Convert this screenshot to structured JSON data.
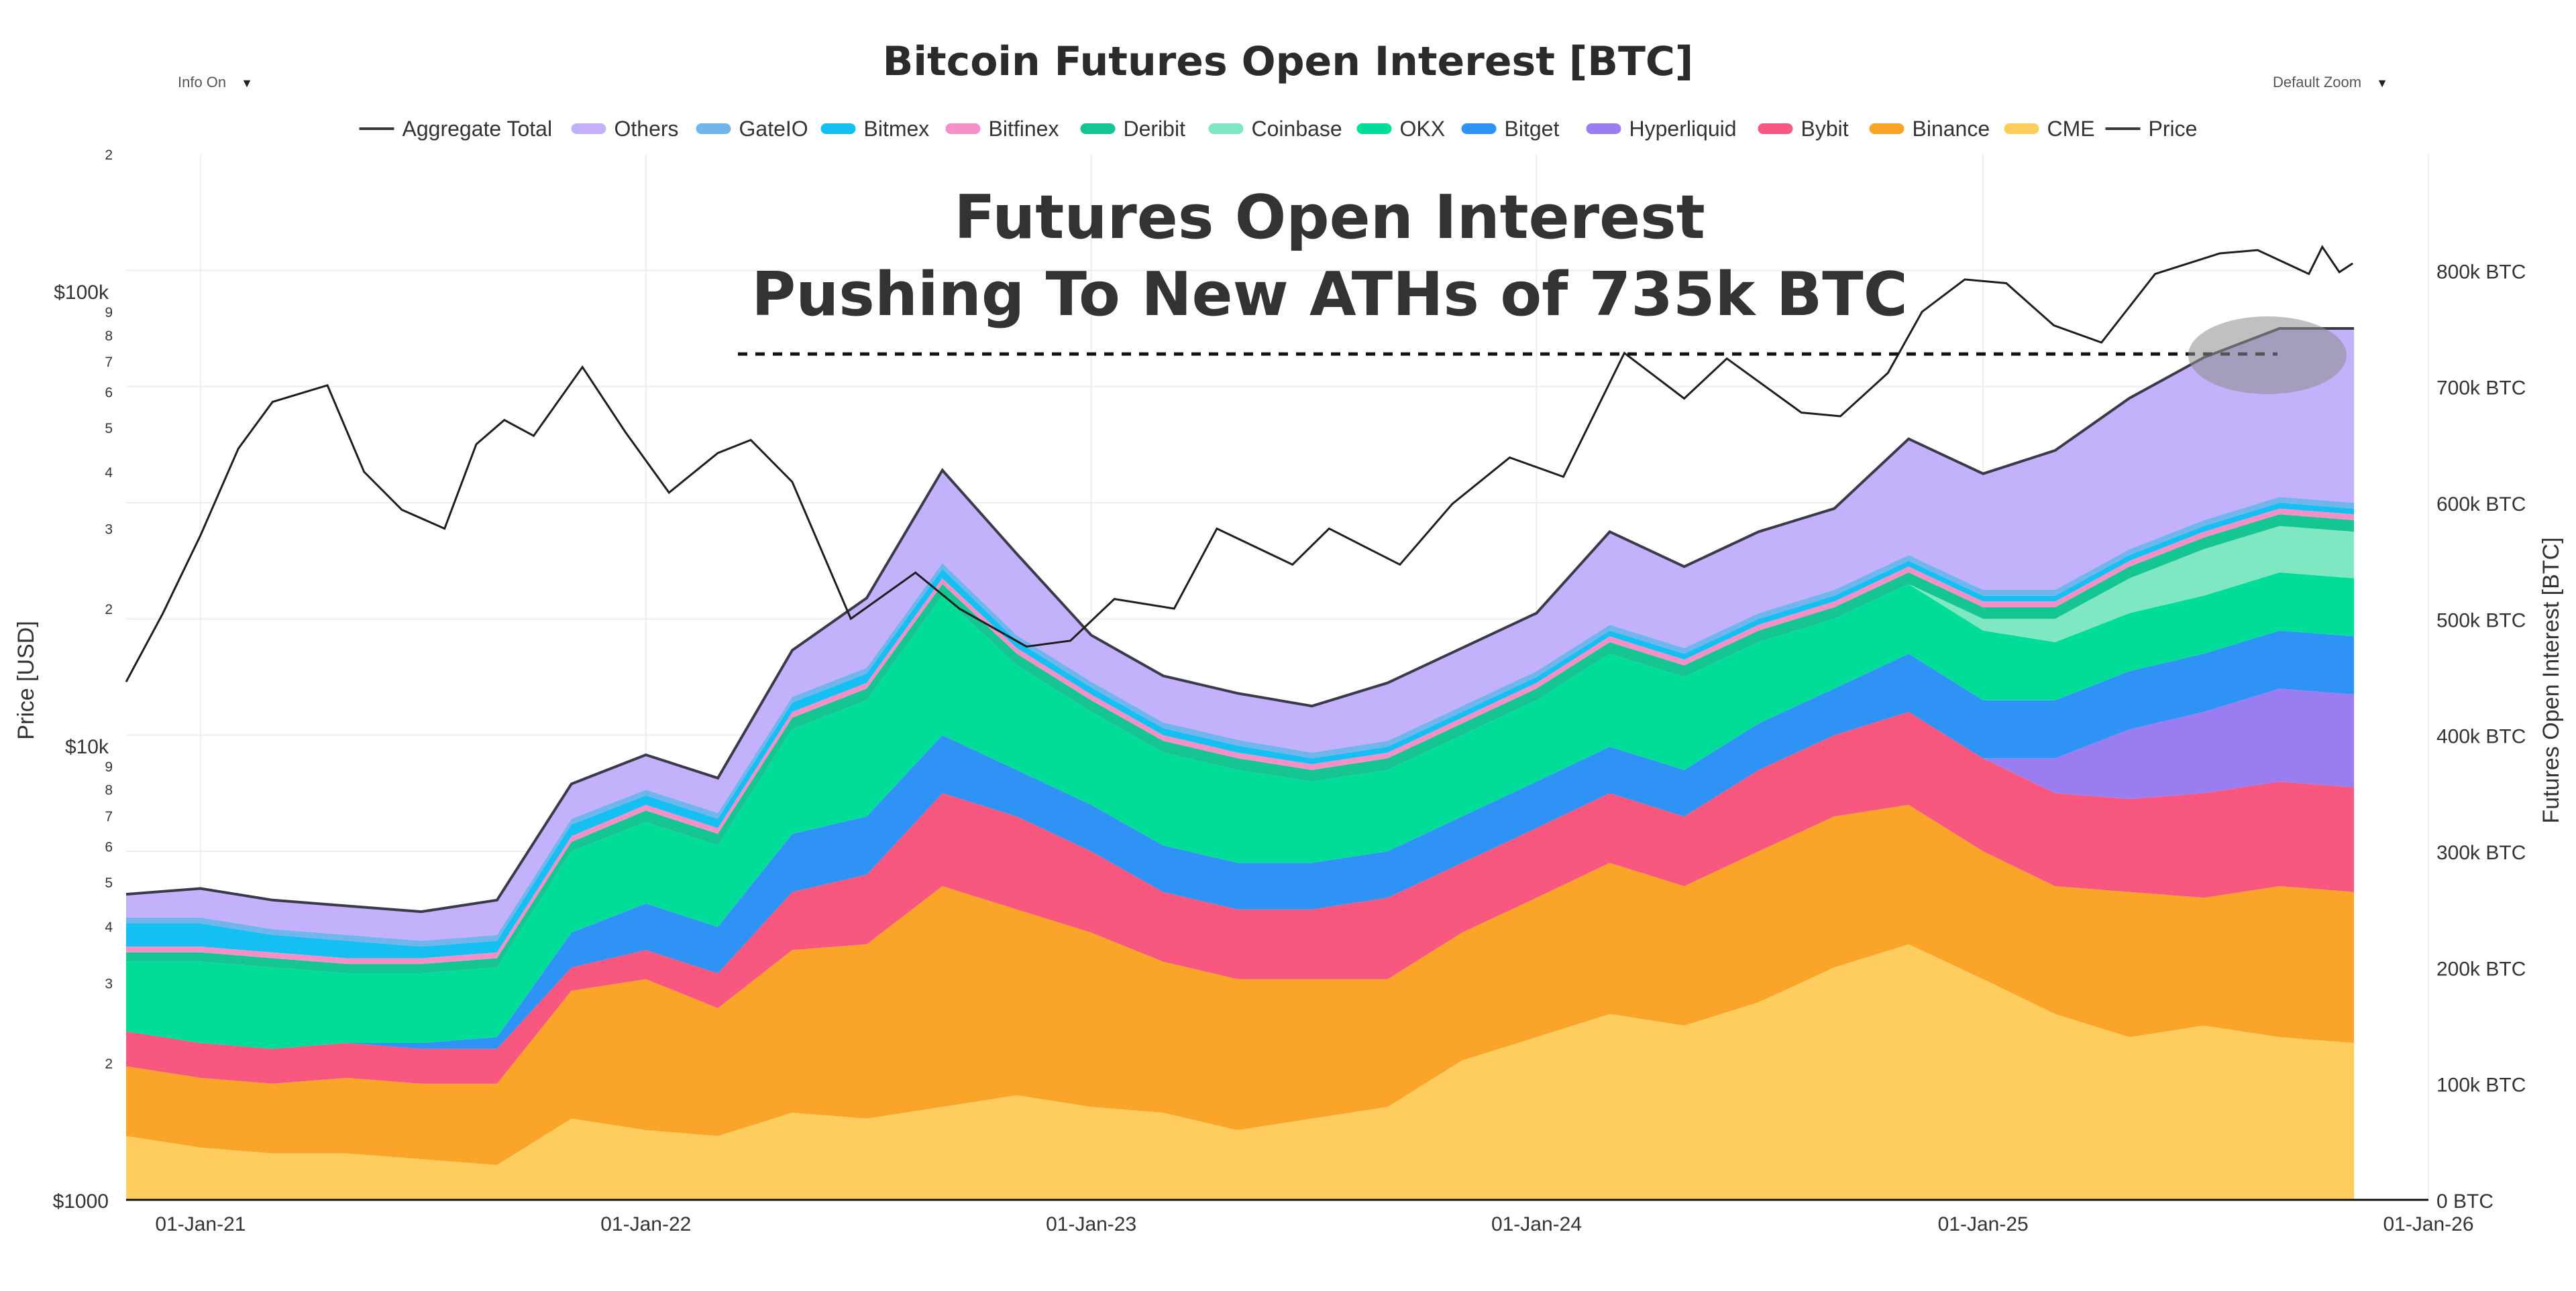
{
  "controls": {
    "info": "Info On",
    "zoom": "Default Zoom"
  },
  "chart_data": {
    "type": "area",
    "title": "Bitcoin Futures Open Interest [BTC]",
    "annotation": {
      "line1": "Futures Open Interest",
      "line2": "Pushing To New ATHs of 735k BTC",
      "level_btc": 728000
    },
    "left_axis": {
      "title": "Price [USD]",
      "scale": "log",
      "range": [
        1000,
        200000
      ],
      "major_ticks": [
        {
          "value": 1000,
          "label": "$1000"
        },
        {
          "value": 10000,
          "label": "$10k"
        },
        {
          "value": 100000,
          "label": "$100k"
        }
      ],
      "minor_ticks": [
        {
          "value": 2000,
          "label": "2"
        },
        {
          "value": 3000,
          "label": "3"
        },
        {
          "value": 4000,
          "label": "4"
        },
        {
          "value": 5000,
          "label": "5"
        },
        {
          "value": 6000,
          "label": "6"
        },
        {
          "value": 7000,
          "label": "7"
        },
        {
          "value": 8000,
          "label": "8"
        },
        {
          "value": 9000,
          "label": "9"
        },
        {
          "value": 20000,
          "label": "2"
        },
        {
          "value": 30000,
          "label": "3"
        },
        {
          "value": 40000,
          "label": "4"
        },
        {
          "value": 50000,
          "label": "5"
        },
        {
          "value": 60000,
          "label": "6"
        },
        {
          "value": 70000,
          "label": "7"
        },
        {
          "value": 80000,
          "label": "8"
        },
        {
          "value": 90000,
          "label": "9"
        },
        {
          "value": 200000,
          "label": "2"
        }
      ]
    },
    "right_axis": {
      "title": "Futures Open Interest [BTC]",
      "range": [
        0,
        900000
      ],
      "ticks": [
        {
          "value": 0,
          "label": "0 BTC"
        },
        {
          "value": 100000,
          "label": "100k BTC"
        },
        {
          "value": 200000,
          "label": "200k BTC"
        },
        {
          "value": 300000,
          "label": "300k BTC"
        },
        {
          "value": 400000,
          "label": "400k BTC"
        },
        {
          "value": 500000,
          "label": "500k BTC"
        },
        {
          "value": 600000,
          "label": "600k BTC"
        },
        {
          "value": 700000,
          "label": "700k BTC"
        },
        {
          "value": 800000,
          "label": "800k BTC"
        }
      ]
    },
    "x_axis": {
      "range": [
        "2020-11-01",
        "2026-01-01"
      ],
      "ticks": [
        {
          "value": "2021-01-01",
          "label": "01-Jan-21"
        },
        {
          "value": "2022-01-01",
          "label": "01-Jan-22"
        },
        {
          "value": "2023-01-01",
          "label": "01-Jan-23"
        },
        {
          "value": "2024-01-01",
          "label": "01-Jan-24"
        },
        {
          "value": "2025-01-01",
          "label": "01-Jan-25"
        },
        {
          "value": "2026-01-01",
          "label": "01-Jan-26"
        }
      ]
    },
    "legend": [
      {
        "name": "Aggregate Total",
        "kind": "line",
        "color": "#3a3a3a"
      },
      {
        "name": "Others",
        "kind": "area",
        "color": "#c3b1fb"
      },
      {
        "name": "GateIO",
        "kind": "area",
        "color": "#72b5ec"
      },
      {
        "name": "Bitmex",
        "kind": "area",
        "color": "#16bff2"
      },
      {
        "name": "Bitfinex",
        "kind": "area",
        "color": "#f590c6"
      },
      {
        "name": "Deribit",
        "kind": "area",
        "color": "#16c692"
      },
      {
        "name": "Coinbase",
        "kind": "area",
        "color": "#7fe7c1"
      },
      {
        "name": "OKX",
        "kind": "area",
        "color": "#00dd98"
      },
      {
        "name": "Bitget",
        "kind": "area",
        "color": "#2f93f5"
      },
      {
        "name": "Hyperliquid",
        "kind": "area",
        "color": "#9b7df2"
      },
      {
        "name": "Bybit",
        "kind": "area",
        "color": "#f8577f"
      },
      {
        "name": "Binance",
        "kind": "area",
        "color": "#fba42a"
      },
      {
        "name": "CME",
        "kind": "area",
        "color": "#fecd5e"
      },
      {
        "name": "Price",
        "kind": "line",
        "color": "#3a3a3a"
      }
    ],
    "dates": [
      "2020-11-01",
      "2021-01-01",
      "2021-03-01",
      "2021-05-01",
      "2021-07-01",
      "2021-09-01",
      "2021-11-01",
      "2022-01-01",
      "2022-03-01",
      "2022-05-01",
      "2022-07-01",
      "2022-09-01",
      "2022-11-01",
      "2023-01-01",
      "2023-03-01",
      "2023-05-01",
      "2023-07-01",
      "2023-09-01",
      "2023-11-01",
      "2024-01-01",
      "2024-03-01",
      "2024-05-01",
      "2024-07-01",
      "2024-09-01",
      "2024-11-01",
      "2025-01-01",
      "2025-03-01",
      "2025-05-01",
      "2025-07-01",
      "2025-09-01",
      "2025-11-01"
    ],
    "series": [
      {
        "name": "CME",
        "values": [
          55000,
          45000,
          40000,
          40000,
          35000,
          30000,
          70000,
          60000,
          55000,
          75000,
          70000,
          80000,
          90000,
          80000,
          75000,
          60000,
          70000,
          80000,
          120000,
          140000,
          160000,
          150000,
          170000,
          200000,
          220000,
          190000,
          160000,
          140000,
          150000,
          140000,
          135000
        ]
      },
      {
        "name": "Binance",
        "values": [
          60000,
          60000,
          60000,
          65000,
          65000,
          70000,
          110000,
          130000,
          110000,
          140000,
          150000,
          190000,
          160000,
          150000,
          130000,
          130000,
          120000,
          110000,
          110000,
          120000,
          130000,
          120000,
          130000,
          130000,
          120000,
          110000,
          110000,
          125000,
          110000,
          130000,
          130000
        ]
      },
      {
        "name": "Bybit",
        "values": [
          30000,
          30000,
          30000,
          30000,
          30000,
          30000,
          20000,
          25000,
          30000,
          50000,
          60000,
          80000,
          80000,
          70000,
          60000,
          60000,
          60000,
          70000,
          60000,
          60000,
          60000,
          60000,
          70000,
          70000,
          80000,
          80000,
          80000,
          80000,
          90000,
          90000,
          90000
        ]
      },
      {
        "name": "Hyperliquid",
        "values": [
          0,
          0,
          0,
          0,
          0,
          0,
          0,
          0,
          0,
          0,
          0,
          0,
          0,
          0,
          0,
          0,
          0,
          0,
          0,
          0,
          0,
          0,
          0,
          0,
          0,
          0,
          30000,
          60000,
          70000,
          80000,
          80000
        ]
      },
      {
        "name": "Bitget",
        "values": [
          0,
          0,
          0,
          0,
          5000,
          10000,
          30000,
          40000,
          40000,
          50000,
          50000,
          50000,
          40000,
          40000,
          40000,
          40000,
          40000,
          40000,
          40000,
          40000,
          40000,
          40000,
          40000,
          40000,
          50000,
          50000,
          50000,
          50000,
          50000,
          50000,
          50000
        ]
      },
      {
        "name": "OKX",
        "values": [
          60000,
          70000,
          70000,
          60000,
          60000,
          60000,
          70000,
          70000,
          70000,
          90000,
          100000,
          120000,
          90000,
          80000,
          80000,
          80000,
          70000,
          70000,
          70000,
          70000,
          80000,
          80000,
          70000,
          60000,
          60000,
          60000,
          50000,
          50000,
          50000,
          50000,
          50000
        ]
      },
      {
        "name": "Coinbase",
        "values": [
          0,
          0,
          0,
          0,
          0,
          0,
          0,
          0,
          0,
          0,
          0,
          0,
          0,
          0,
          0,
          0,
          0,
          0,
          0,
          0,
          0,
          0,
          0,
          0,
          0,
          10000,
          20000,
          30000,
          40000,
          40000,
          40000
        ]
      },
      {
        "name": "Deribit",
        "values": [
          8000,
          8000,
          8000,
          8000,
          8000,
          8000,
          8000,
          10000,
          10000,
          10000,
          10000,
          10000,
          10000,
          10000,
          10000,
          10000,
          10000,
          10000,
          10000,
          10000,
          10000,
          10000,
          10000,
          10000,
          10000,
          10000,
          10000,
          10000,
          10000,
          10000,
          10000
        ]
      },
      {
        "name": "Bitfinex",
        "values": [
          5000,
          5000,
          5000,
          5000,
          5000,
          5000,
          5000,
          5000,
          5000,
          5000,
          5000,
          5000,
          5000,
          5000,
          5000,
          5000,
          5000,
          5000,
          5000,
          5000,
          5000,
          5000,
          5000,
          5000,
          5000,
          5000,
          5000,
          5000,
          5000,
          5000,
          5000
        ]
      },
      {
        "name": "Bitmex",
        "values": [
          20000,
          20000,
          15000,
          15000,
          10000,
          10000,
          10000,
          8000,
          8000,
          8000,
          8000,
          8000,
          6000,
          6000,
          6000,
          6000,
          5000,
          5000,
          5000,
          5000,
          5000,
          5000,
          5000,
          5000,
          5000,
          5000,
          5000,
          5000,
          5000,
          5000,
          5000
        ]
      },
      {
        "name": "GateIO",
        "values": [
          5000,
          5000,
          5000,
          5000,
          5000,
          5000,
          5000,
          5000,
          5000,
          5000,
          5000,
          5000,
          5000,
          5000,
          5000,
          5000,
          5000,
          5000,
          5000,
          5000,
          5000,
          5000,
          5000,
          5000,
          5000,
          5000,
          5000,
          5000,
          5000,
          5000,
          5000
        ]
      },
      {
        "name": "Others",
        "values": [
          20000,
          25000,
          25000,
          25000,
          25000,
          30000,
          30000,
          30000,
          30000,
          40000,
          60000,
          80000,
          70000,
          40000,
          40000,
          40000,
          40000,
          50000,
          50000,
          50000,
          80000,
          70000,
          70000,
          70000,
          100000,
          100000,
          120000,
          130000,
          140000,
          145000,
          150000
        ]
      }
    ],
    "price": {
      "dates": [
        "2020-11-01",
        "2020-12-01",
        "2021-01-01",
        "2021-02-01",
        "2021-03-01",
        "2021-04-15",
        "2021-05-15",
        "2021-06-15",
        "2021-07-20",
        "2021-08-15",
        "2021-09-07",
        "2021-10-01",
        "2021-11-10",
        "2021-12-15",
        "2022-01-20",
        "2022-03-01",
        "2022-03-28",
        "2022-05-01",
        "2022-06-18",
        "2022-08-10",
        "2022-09-15",
        "2022-11-09",
        "2022-12-15",
        "2023-01-20",
        "2023-03-10",
        "2023-04-14",
        "2023-06-15",
        "2023-07-15",
        "2023-09-11",
        "2023-10-24",
        "2023-12-10",
        "2024-01-23",
        "2024-03-13",
        "2024-05-01",
        "2024-06-05",
        "2024-08-05",
        "2024-09-06",
        "2024-10-15",
        "2024-11-12",
        "2024-12-17",
        "2025-01-20",
        "2025-02-28",
        "2025-04-08",
        "2025-05-22",
        "2025-07-14",
        "2025-08-14",
        "2025-09-25",
        "2025-10-06",
        "2025-10-20",
        "2025-10-31"
      ],
      "values": [
        13800,
        19500,
        29000,
        45000,
        57000,
        62000,
        40000,
        33000,
        30000,
        46000,
        52000,
        48000,
        68000,
        49000,
        36000,
        44000,
        47000,
        38000,
        19000,
        24000,
        20000,
        16500,
        17000,
        21000,
        20000,
        30000,
        25000,
        30000,
        25000,
        34000,
        43000,
        39000,
        73000,
        58000,
        71000,
        54000,
        53000,
        66000,
        90000,
        106000,
        104000,
        84000,
        77000,
        109000,
        121000,
        123000,
        109000,
        125000,
        110000,
        115000
      ]
    }
  }
}
